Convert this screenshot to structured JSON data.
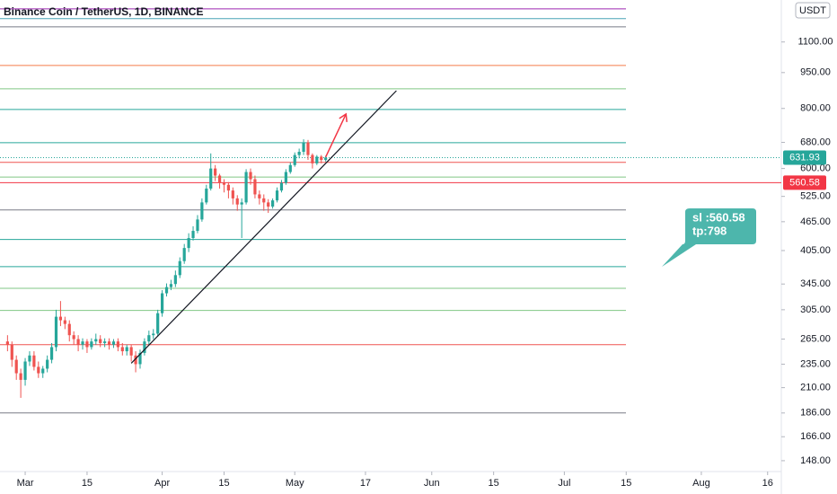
{
  "chart_data": {
    "type": "candlestick",
    "title": "Binance Coin / TetherUS, 1D, BINANCE",
    "currency": "USDT",
    "log_scale": true,
    "up_color": "#26a69a",
    "down_color": "#ef5350",
    "x": [
      56,
      57,
      58,
      59,
      60,
      61,
      62,
      63,
      64,
      65,
      66,
      67,
      68,
      69,
      70,
      71,
      72,
      73,
      74,
      75,
      76,
      77,
      78,
      79,
      80,
      81,
      82,
      83,
      84,
      85,
      86,
      87,
      88,
      89,
      90,
      91,
      92,
      93,
      94,
      95,
      96,
      97,
      98,
      99,
      100,
      101,
      102,
      103,
      104,
      105,
      106,
      107,
      108,
      109,
      110,
      111,
      112,
      113,
      114,
      115,
      116,
      117,
      118,
      119,
      120,
      121,
      122,
      123,
      124,
      125,
      126,
      127,
      128
    ],
    "open": [
      262,
      258,
      240,
      225,
      218,
      238,
      245,
      232,
      225,
      230,
      240,
      255,
      295,
      290,
      285,
      270,
      265,
      258,
      262,
      255,
      262,
      265,
      260,
      262,
      258,
      262,
      255,
      250,
      255,
      245,
      235,
      248,
      262,
      270,
      272,
      300,
      330,
      340,
      345,
      360,
      385,
      410,
      430,
      445,
      470,
      510,
      545,
      600,
      580,
      560,
      555,
      540,
      520,
      505,
      510,
      590,
      570,
      530,
      520,
      510,
      500,
      515,
      540,
      560,
      590,
      610,
      640,
      650,
      680,
      640,
      615,
      635,
      625
    ],
    "high": [
      270,
      262,
      245,
      230,
      242,
      250,
      250,
      238,
      233,
      245,
      260,
      305,
      318,
      295,
      290,
      275,
      270,
      266,
      265,
      266,
      272,
      270,
      266,
      266,
      265,
      266,
      260,
      258,
      258,
      250,
      252,
      266,
      276,
      278,
      305,
      335,
      346,
      352,
      368,
      392,
      418,
      440,
      455,
      480,
      520,
      555,
      645,
      610,
      585,
      570,
      562,
      548,
      528,
      520,
      598,
      600,
      580,
      540,
      530,
      518,
      520,
      548,
      568,
      598,
      618,
      648,
      660,
      690,
      688,
      645,
      640,
      640,
      638
    ],
    "low": [
      250,
      232,
      218,
      200,
      212,
      233,
      228,
      220,
      220,
      226,
      236,
      250,
      282,
      278,
      262,
      258,
      250,
      252,
      248,
      252,
      258,
      255,
      255,
      252,
      254,
      250,
      245,
      245,
      238,
      226,
      230,
      245,
      258,
      265,
      268,
      295,
      325,
      335,
      340,
      355,
      380,
      402,
      425,
      440,
      465,
      505,
      540,
      565,
      545,
      535,
      520,
      505,
      490,
      430,
      505,
      555,
      520,
      505,
      490,
      485,
      495,
      510,
      535,
      555,
      585,
      605,
      630,
      640,
      625,
      600,
      610,
      615,
      620
    ],
    "close": [
      258,
      240,
      225,
      218,
      238,
      245,
      232,
      225,
      230,
      240,
      255,
      295,
      290,
      285,
      270,
      265,
      258,
      262,
      255,
      262,
      265,
      260,
      262,
      258,
      262,
      255,
      250,
      255,
      245,
      235,
      248,
      262,
      270,
      272,
      300,
      330,
      340,
      345,
      360,
      385,
      410,
      430,
      445,
      470,
      510,
      545,
      600,
      580,
      560,
      555,
      540,
      520,
      505,
      510,
      590,
      570,
      530,
      520,
      510,
      500,
      515,
      540,
      560,
      590,
      610,
      640,
      650,
      680,
      640,
      615,
      635,
      625,
      631.93
    ],
    "xlim": [
      54.3,
      231.1
    ],
    "xticks": [
      {
        "value": 60,
        "label": "Mar"
      },
      {
        "value": 74,
        "label": "15"
      },
      {
        "value": 91,
        "label": "Apr"
      },
      {
        "value": 105,
        "label": "15"
      },
      {
        "value": 121,
        "label": "May"
      },
      {
        "value": 137,
        "label": "17"
      },
      {
        "value": 152,
        "label": "Jun"
      },
      {
        "value": 166,
        "label": "15"
      },
      {
        "value": 182,
        "label": "Jul"
      },
      {
        "value": 196,
        "label": "15"
      },
      {
        "value": 213,
        "label": "Aug"
      },
      {
        "value": 228,
        "label": "16"
      }
    ],
    "ylim": [
      140.5,
      1345
    ],
    "yticks": [
      {
        "value": 1100,
        "label": "1100.00"
      },
      {
        "value": 950,
        "label": "950.00"
      },
      {
        "value": 800,
        "label": "800.00"
      },
      {
        "value": 680,
        "label": "680.00"
      },
      {
        "value": 600,
        "label": "600.00"
      },
      {
        "value": 525,
        "label": "525.00"
      },
      {
        "value": 465,
        "label": "465.00"
      },
      {
        "value": 405,
        "label": "405.00"
      },
      {
        "value": 345,
        "label": "345.00"
      },
      {
        "value": 305,
        "label": "305.00"
      },
      {
        "value": 265,
        "label": "265.00"
      },
      {
        "value": 235,
        "label": "235.00"
      },
      {
        "value": 210,
        "label": "210.00"
      },
      {
        "value": 186,
        "label": "186.00"
      },
      {
        "value": 166,
        "label": "166.00"
      },
      {
        "value": 148,
        "label": "148.00"
      }
    ],
    "last_price": 631.93,
    "last_price_color": "#26a69a",
    "stop_price": 560.58,
    "stop_color": "#f23645",
    "levels": [
      {
        "value": 1289,
        "color": "#9c27b0"
      },
      {
        "value": 1230,
        "color": "#4aa3b5"
      },
      {
        "value": 1183,
        "color": "#787b86"
      },
      {
        "value": 983,
        "color": "#f57c4a"
      },
      {
        "value": 879,
        "color": "#81c784"
      },
      {
        "value": 796,
        "color": "#26a69a"
      },
      {
        "value": 679,
        "color": "#26a69a"
      },
      {
        "value": 618,
        "color": "#ef5350"
      },
      {
        "value": 576,
        "color": "#81c784"
      },
      {
        "value": 492,
        "color": "#787b86"
      },
      {
        "value": 427,
        "color": "#26a69a"
      },
      {
        "value": 375,
        "color": "#26a69a"
      },
      {
        "value": 338,
        "color": "#81c784"
      },
      {
        "value": 304,
        "color": "#81c784"
      },
      {
        "value": 258,
        "color": "#ef5350"
      },
      {
        "value": 186,
        "color": "#787b86"
      }
    ],
    "trendline": {
      "x": [
        84,
        144
      ],
      "y": [
        236,
        871
      ],
      "color": "#131722"
    },
    "arrow": {
      "x": [
        128,
        132.6
      ],
      "y": [
        634,
        779
      ],
      "color": "#f23645"
    },
    "callout": {
      "lines": [
        "sl :560.58",
        "tp:798"
      ],
      "color": "#4db6ac"
    }
  }
}
